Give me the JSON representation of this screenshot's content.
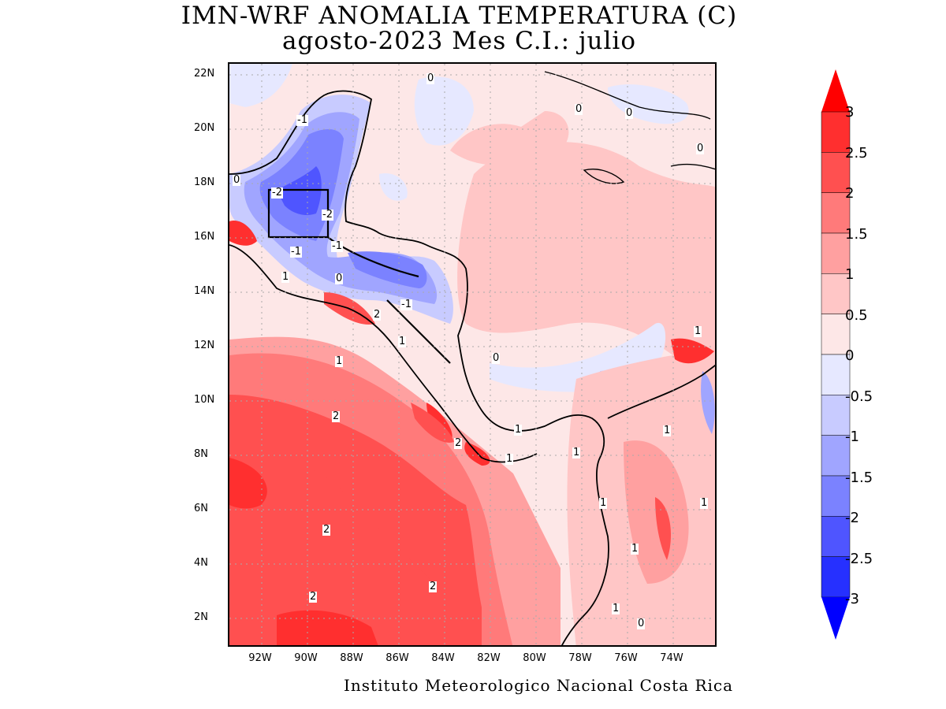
{
  "title": {
    "line1": "IMN-WRF  ANOMALIA TEMPERATURA (C)",
    "line2": "agosto-2023 Mes C.I.: julio"
  },
  "credit": "Instituto Meteorologico Nacional Costa Rica",
  "map": {
    "lat_range": [
      1,
      22.5
    ],
    "lon_range": [
      -93,
      -72.5
    ],
    "lat_labels": [
      "22N",
      "20N",
      "18N",
      "16N",
      "14N",
      "12N",
      "10N",
      "8N",
      "6N",
      "4N",
      "2N"
    ],
    "lon_labels": [
      "92W",
      "90W",
      "88W",
      "86W",
      "84W",
      "82W",
      "80W",
      "78W",
      "76W",
      "74W"
    ],
    "contour_labels": [
      "-1",
      "-2",
      "-2",
      "-1",
      "-1",
      "-1",
      "0",
      "0",
      "0",
      "0",
      "0",
      "0",
      "0",
      "0",
      "1",
      "1",
      "1",
      "1",
      "1",
      "1",
      "1",
      "1",
      "1",
      "1",
      "1",
      "1",
      "2",
      "2",
      "2",
      "2",
      "2",
      "2"
    ]
  },
  "colorbar": {
    "labels": [
      "3",
      "2.5",
      "2",
      "1.5",
      "1",
      "0.5",
      "0",
      "-0.5",
      "-1",
      "-1.5",
      "-2",
      "-2.5",
      "-3"
    ],
    "colors": [
      "#ff0000",
      "#ff2f2f",
      "#ff5050",
      "#ff7a7a",
      "#ffa0a0",
      "#ffc6c6",
      "#fde7e7",
      "#e6e8ff",
      "#c8cbff",
      "#a0a5ff",
      "#7b82ff",
      "#4f55ff",
      "#2630ff",
      "#0000ff"
    ],
    "top_arrow_color": "#ff0000",
    "bottom_arrow_color": "#0000ff"
  }
}
